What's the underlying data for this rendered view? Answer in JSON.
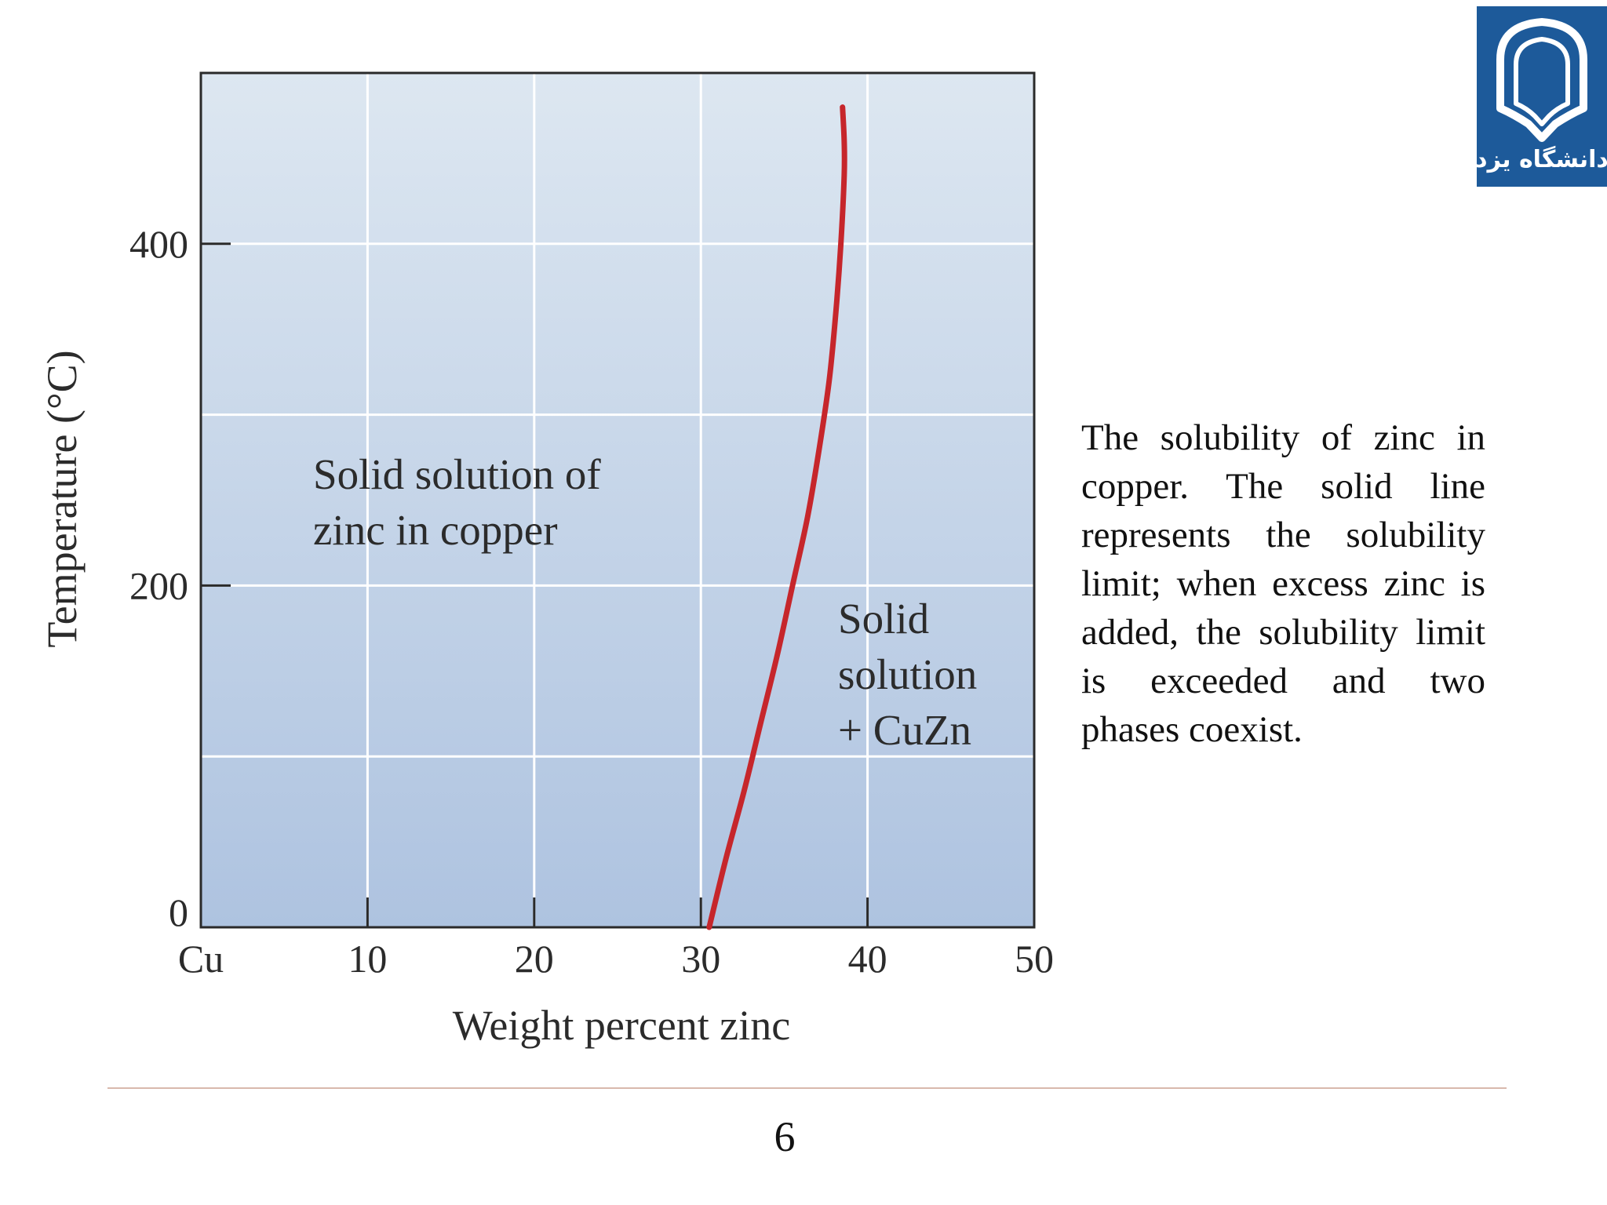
{
  "chart_data": {
    "type": "line",
    "title": "",
    "xlabel": "Weight percent zinc",
    "ylabel": "Temperature (°C)",
    "xlim": [
      0,
      50
    ],
    "ylim": [
      0,
      500
    ],
    "x_ticks": [
      {
        "value": 0,
        "label": "Cu"
      },
      {
        "value": 10,
        "label": "10"
      },
      {
        "value": 20,
        "label": "20"
      },
      {
        "value": 30,
        "label": "30"
      },
      {
        "value": 40,
        "label": "40"
      },
      {
        "value": 50,
        "label": "50"
      }
    ],
    "y_ticks": [
      {
        "value": 0,
        "label": "0"
      },
      {
        "value": 200,
        "label": "200"
      },
      {
        "value": 400,
        "label": "400"
      }
    ],
    "grid": true,
    "series": [
      {
        "color": "#c6262b",
        "x": [
          30.5,
          31.5,
          32.6,
          33.6,
          34.6,
          35.5,
          36.4,
          37.1,
          37.7,
          38.1,
          38.4,
          38.6,
          38.6,
          38.5
        ],
        "y": [
          0,
          40,
          80,
          120,
          160,
          200,
          240,
          280,
          320,
          360,
          400,
          440,
          460,
          480
        ]
      }
    ],
    "annotations": [
      {
        "lines": [
          "Solid solution of",
          "zinc in copper"
        ]
      },
      {
        "lines": [
          "Solid",
          "solution",
          "+ CuZn"
        ]
      }
    ],
    "colors": {
      "plot_bg_top": "#dde7f1",
      "plot_bg_bottom": "#aec3e0",
      "curve": "#c6262b"
    }
  },
  "caption": "The solubility of zinc in copper. The solid line represents the solubility limit; when excess zinc is added, the solubility limit is exceeded and two phases coexist.",
  "footer": {
    "page_number": "6"
  },
  "logo": {
    "icon": "university-of-yazd-logo",
    "color": "#1d5a9a",
    "text": "دانشگاه یزد"
  }
}
